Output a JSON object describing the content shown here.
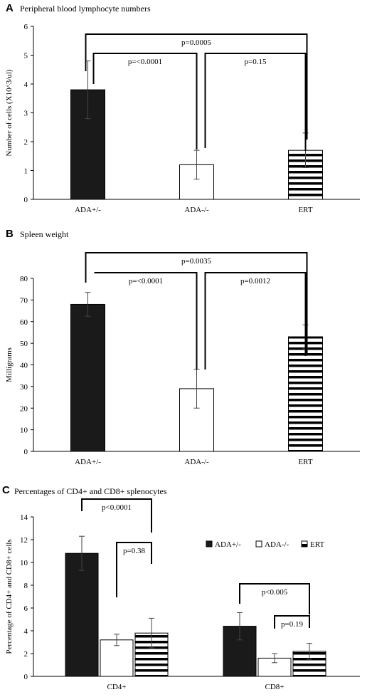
{
  "chart_data": [
    {
      "panel_letter": "A",
      "title": "Peripheral blood lymphocyte numbers",
      "type": "bar",
      "ylabel": "Number of cells (X10^3/ul)",
      "xlabel": "",
      "ylim": [
        0,
        6
      ],
      "yticks": [
        "0",
        "1",
        "2",
        "3",
        "4",
        "5",
        "6"
      ],
      "categories": [
        "ADA+/-",
        "ADA-/-",
        "ERT"
      ],
      "series": [
        {
          "values": [
            3.8,
            1.2,
            1.7
          ],
          "errors": [
            1.0,
            0.5,
            0.6
          ],
          "fills": [
            "solid-black",
            "white",
            "horizontal-stripes"
          ]
        }
      ],
      "grid": false,
      "annotations": [
        {
          "label": "p=0.0005",
          "from": 0,
          "to": 2
        },
        {
          "label": "p=<0.0001",
          "from": 0,
          "to": 1
        },
        {
          "label": "p=0.15",
          "from": 1,
          "to": 2
        }
      ]
    },
    {
      "panel_letter": "B",
      "title": "Spleen weight",
      "type": "bar",
      "ylabel": "Milligrams",
      "xlabel": "",
      "ylim": [
        0,
        80
      ],
      "yticks": [
        "0",
        "10",
        "20",
        "30",
        "40",
        "50",
        "60",
        "70",
        "80"
      ],
      "categories": [
        "ADA+/-",
        "ADA-/-",
        "ERT"
      ],
      "series": [
        {
          "values": [
            68,
            29,
            53
          ],
          "errors": [
            5.5,
            9,
            5.5
          ],
          "fills": [
            "solid-black",
            "white",
            "horizontal-stripes"
          ]
        }
      ],
      "grid": false,
      "annotations": [
        {
          "label": "p=0.0035",
          "from": 0,
          "to": 2
        },
        {
          "label": "p=<0.0001",
          "from": 0,
          "to": 1
        },
        {
          "label": "p=0.0012",
          "from": 1,
          "to": 2
        }
      ]
    },
    {
      "panel_letter": "C",
      "title": "Percentages of CD4+ and CD8+ splenocytes",
      "type": "bar",
      "ylabel": "Percentage of CD4+ and CD8+ cells",
      "xlabel": "",
      "ylim": [
        0,
        14
      ],
      "yticks": [
        "0",
        "2",
        "4",
        "6",
        "8",
        "10",
        "12",
        "14"
      ],
      "categories": [
        "CD4+",
        "CD8+"
      ],
      "series": [
        {
          "name": "ADA+/-",
          "values": [
            10.8,
            4.4
          ],
          "errors": [
            1.5,
            1.2
          ],
          "fill": "solid-black"
        },
        {
          "name": "ADA-/-",
          "values": [
            3.2,
            1.6
          ],
          "errors": [
            0.5,
            0.4
          ],
          "fill": "white"
        },
        {
          "name": "ERT",
          "values": [
            3.8,
            2.2
          ],
          "errors": [
            1.3,
            0.7
          ],
          "fill": "horizontal-stripes"
        }
      ],
      "legend_position": "top-right",
      "grid": false,
      "annotations": [
        {
          "label": "p<0.0001",
          "group": 0,
          "from": 0,
          "to": 2
        },
        {
          "label": "p=0.38",
          "group": 0,
          "from": 1,
          "to": 2
        },
        {
          "label": "p<0.005",
          "group": 1,
          "from": 0,
          "to": 2
        },
        {
          "label": "p=0.19",
          "group": 1,
          "from": 1,
          "to": 2
        }
      ]
    }
  ]
}
